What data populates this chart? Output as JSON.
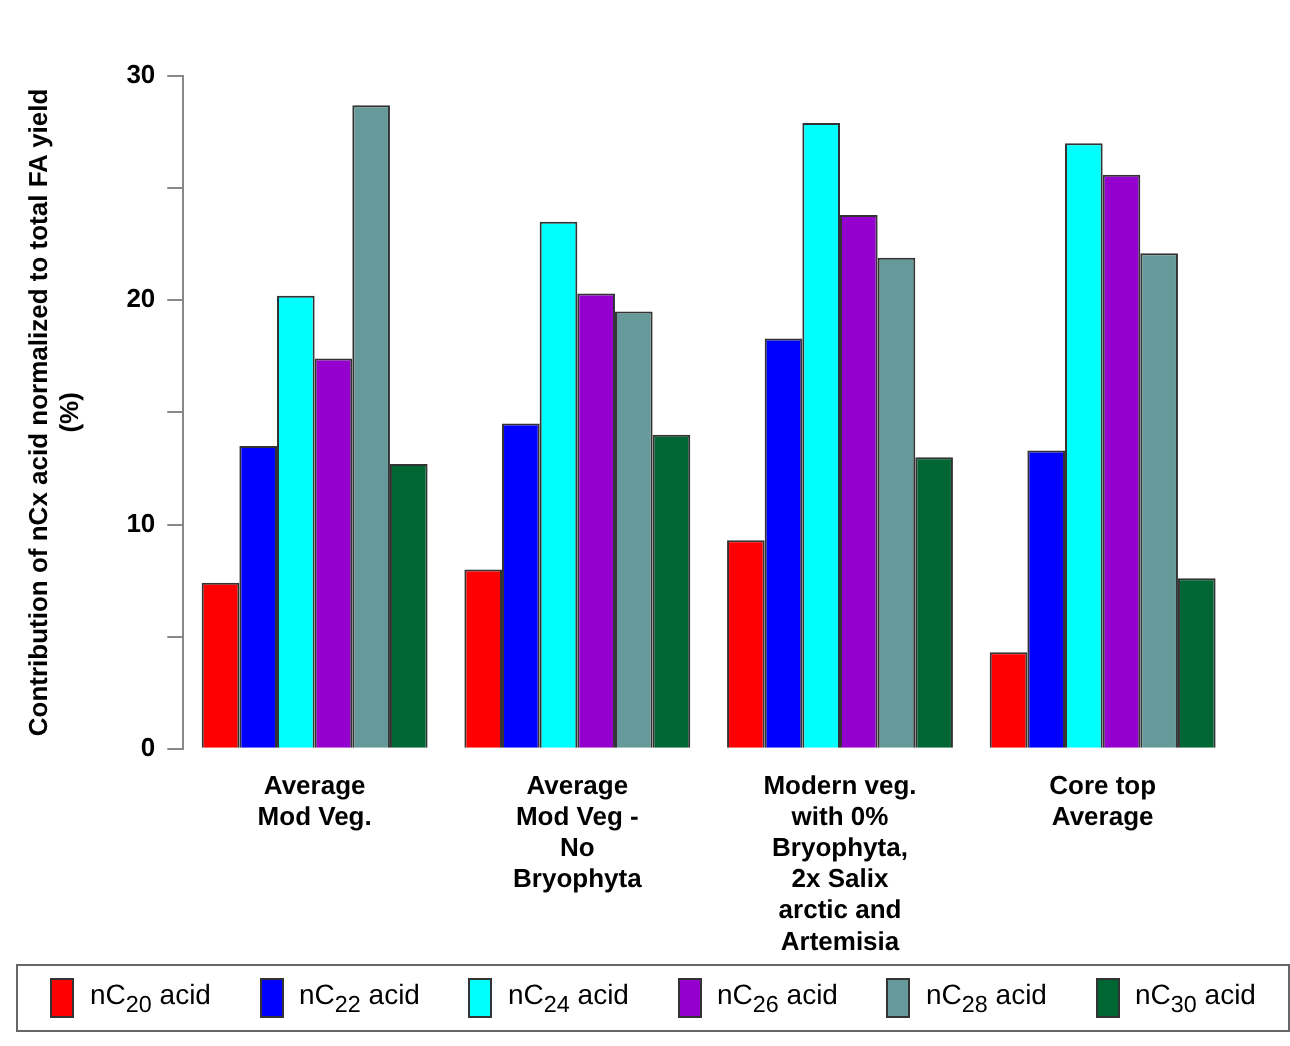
{
  "chart_data": {
    "type": "bar",
    "ylabel": "Contribution of nCx acid normalized to total FA yield (%)",
    "categories": [
      "Average Mod Veg.",
      "Average Mod Veg - No Bryophyta",
      "Modern veg. with 0% Bryophyta, 2x Salix arctic and Artemisia",
      "Core top Average"
    ],
    "series": [
      {
        "name": "nC$_{20}$ acid",
        "color": "#ff0000",
        "values": [
          7.4,
          8.0,
          9.3,
          4.3
        ]
      },
      {
        "name": "nC$_{22}$ acid",
        "color": "#0000ff",
        "values": [
          13.5,
          14.5,
          18.3,
          13.3
        ]
      },
      {
        "name": "nC$_{24}$ acid",
        "color": "#00ffff",
        "values": [
          20.2,
          23.5,
          27.9,
          27.0
        ]
      },
      {
        "name": "nC$_{26}$ acid",
        "color": "#9400cd",
        "values": [
          17.4,
          20.3,
          23.8,
          25.6
        ]
      },
      {
        "name": "nC$_{28}$ acid",
        "color": "#669999",
        "values": [
          28.7,
          19.5,
          21.9,
          22.1
        ]
      },
      {
        "name": "nC$_{30}$ acid",
        "color": "#006633",
        "values": [
          12.7,
          14.0,
          13.0,
          7.6
        ]
      }
    ],
    "ylim": [
      0,
      30
    ],
    "yticks": [
      0,
      {
        "value": 5,
        "label": null
      },
      10,
      {
        "value": 15,
        "label": null
      },
      20,
      {
        "value": 25,
        "label": null
      },
      30
    ],
    "grid": false,
    "legend": "bottom"
  }
}
